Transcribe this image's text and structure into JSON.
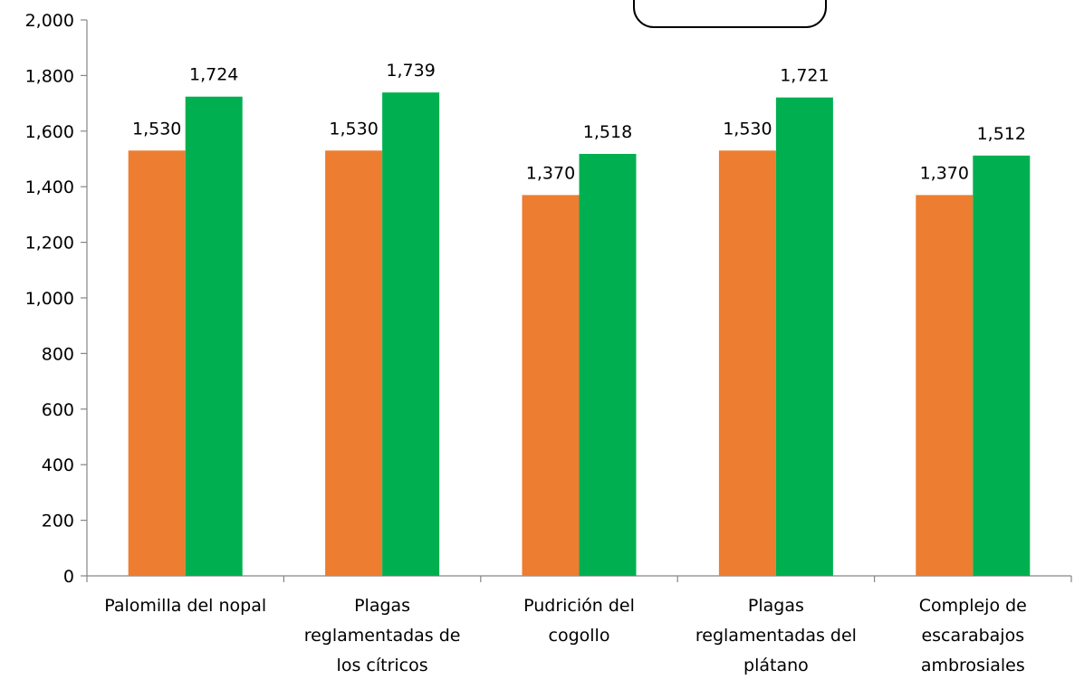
{
  "chart_data": {
    "type": "bar",
    "categories": [
      [
        "Palomilla del nopal"
      ],
      [
        "Plagas",
        "reglamentadas de",
        "los cítricos"
      ],
      [
        "Pudrición del",
        "cogollo"
      ],
      [
        "Plagas",
        "reglamentadas del",
        "plátano"
      ],
      [
        "Complejo de",
        "escarabajos",
        "ambrosiales"
      ]
    ],
    "series": [
      {
        "values": [
          1530,
          1530,
          1370,
          1530,
          1370
        ],
        "labels": [
          "1,530",
          "1,530",
          "1,370",
          "1,530",
          "1,370"
        ],
        "color": "#ED7D31"
      },
      {
        "values": [
          1724,
          1739,
          1518,
          1721,
          1512
        ],
        "labels": [
          "1,724",
          "1,739",
          "1,518",
          "1,721",
          "1,512"
        ],
        "color": "#00B050"
      }
    ],
    "yticks": [
      "0",
      "200",
      "400",
      "600",
      "800",
      "1,000",
      "1,200",
      "1,400",
      "1,600",
      "1,800",
      "2,000"
    ],
    "ylim": [
      0,
      2000
    ],
    "title": "",
    "xlabel": "",
    "ylabel": "",
    "grid": false,
    "legend": "partially visible box at top, no readable text"
  }
}
